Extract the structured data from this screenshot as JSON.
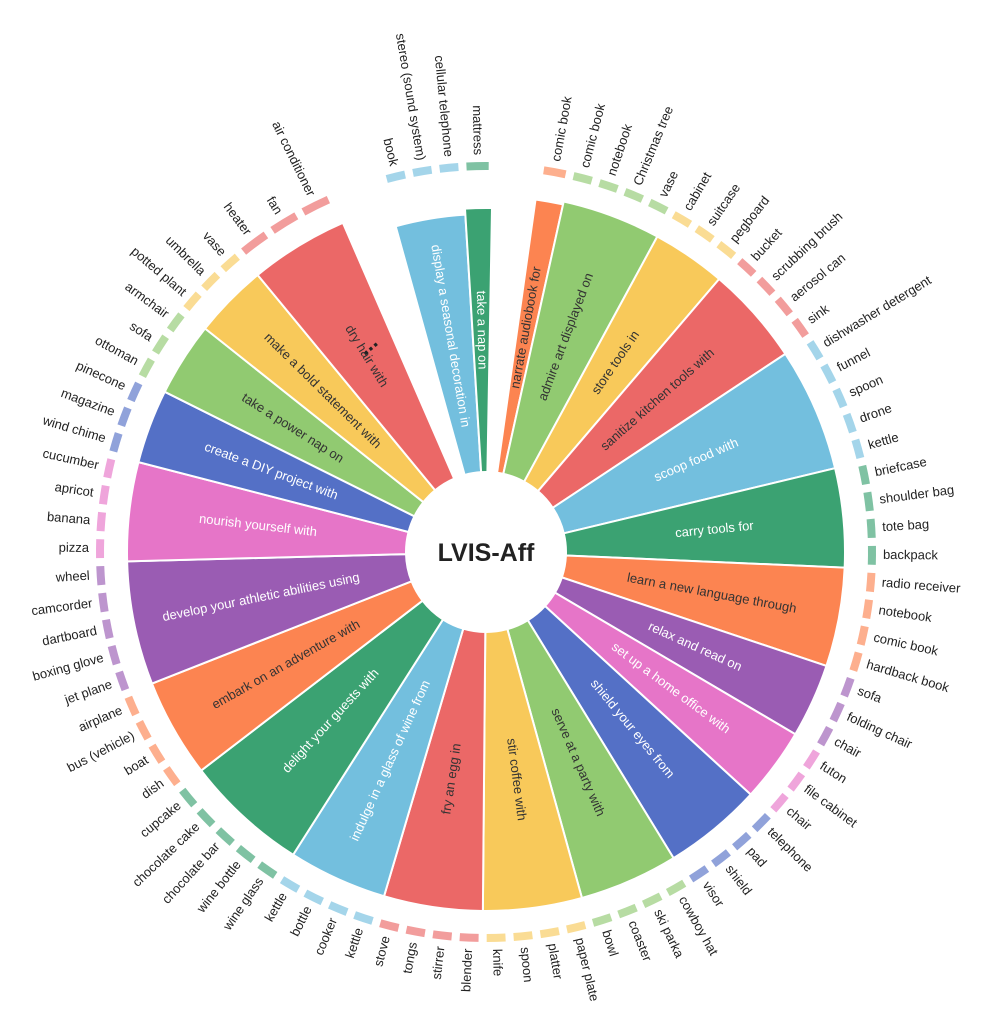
{
  "chart_data": {
    "type": "radial-bar",
    "title": "LVIS-Aff",
    "ellipsis": "...",
    "colors": {
      "red": "#EB6867",
      "yellow": "#F8C95A",
      "green": "#91CA71",
      "blue": "#5470C6",
      "pink": "#E675C8",
      "purple": "#9A5CB3",
      "orange": "#FC8451",
      "teal": "#3BA272",
      "sky": "#73BFDE"
    },
    "segments": [
      {
        "label": "narrate audiobook for",
        "color": "orange",
        "angle": 4.5,
        "r": 0.92,
        "objects": [
          "comic book"
        ]
      },
      {
        "label": "admire art displayed on",
        "color": "green",
        "angle": 16,
        "r": 0.93,
        "objects": [
          "comic book",
          "notebook",
          "Christmas tree",
          "vase"
        ]
      },
      {
        "label": "store tools in",
        "color": "yellow",
        "angle": 12,
        "r": 0.93,
        "objects": [
          "cabinet",
          "suitcase",
          "pegboard"
        ]
      },
      {
        "label": "sanitize kitchen tools with",
        "color": "red",
        "angle": 16,
        "r": 0.93,
        "objects": [
          "bucket",
          "scrubbing brush",
          "aerosol can",
          "sink"
        ]
      },
      {
        "label": "scoop food with",
        "color": "sky",
        "angle": 20,
        "r": 0.93,
        "objects": [
          "dishwasher detergent",
          "funnel",
          "spoon",
          "drone",
          "kettle"
        ]
      },
      {
        "label": "carry tools for",
        "color": "teal",
        "angle": 16,
        "r": 0.93,
        "objects": [
          "briefcase",
          "shoulder bag",
          "tote bag",
          "backpack"
        ]
      },
      {
        "label": "learn a new language through",
        "color": "orange",
        "angle": 16,
        "r": 0.93,
        "objects": [
          "radio receiver",
          "notebook",
          "comic book",
          "hardback book"
        ]
      },
      {
        "label": "relax and read on",
        "color": "purple",
        "angle": 12,
        "r": 0.93,
        "objects": [
          "sofa",
          "folding chair",
          "chair"
        ]
      },
      {
        "label": "set up a home office with",
        "color": "pink",
        "angle": 12,
        "r": 0.93,
        "objects": [
          "futon",
          "file cabinet",
          "chair"
        ]
      },
      {
        "label": "shield your eyes from",
        "color": "blue",
        "angle": 16,
        "r": 0.93,
        "objects": [
          "telephone",
          "pad",
          "shield",
          "visor"
        ]
      },
      {
        "label": "serve at a party with",
        "color": "green",
        "angle": 16,
        "r": 0.93,
        "objects": [
          "cowboy hat",
          "ski parka",
          "coaster",
          "bowl"
        ]
      },
      {
        "label": "stir coffee with",
        "color": "yellow",
        "angle": 16,
        "r": 0.93,
        "objects": [
          "paper plate",
          "platter",
          "spoon",
          "knife"
        ]
      },
      {
        "label": "fry an egg in",
        "color": "red",
        "angle": 16,
        "r": 0.93,
        "objects": [
          "blender",
          "stirrer",
          "tongs",
          "stove"
        ]
      },
      {
        "label": "indulge in a glass of wine from",
        "color": "sky",
        "angle": 16,
        "r": 0.93,
        "objects": [
          "kettle",
          "cooker",
          "bottle",
          "kettle"
        ]
      },
      {
        "label": "delight your guests with",
        "color": "teal",
        "angle": 20,
        "r": 0.93,
        "objects": [
          "wine glass",
          "wine bottle",
          "chocolate bar",
          "chocolate cake",
          "cupcake"
        ]
      },
      {
        "label": "embark on an adventure with",
        "color": "orange",
        "angle": 16,
        "r": 0.93,
        "objects": [
          "dish",
          "boat",
          "bus (vehicle)",
          "airplane"
        ]
      },
      {
        "label": "develop your athletic abilities using",
        "color": "purple",
        "angle": 20,
        "r": 0.93,
        "objects": [
          "jet plane",
          "boxing glove",
          "dartboard",
          "camcorder",
          "wheel"
        ]
      },
      {
        "label": "nourish yourself with",
        "color": "pink",
        "angle": 16,
        "r": 0.93,
        "objects": [
          "pizza",
          "banana",
          "apricot",
          "cucumber"
        ]
      },
      {
        "label": "create a DIY project with",
        "color": "blue",
        "angle": 12,
        "r": 0.93,
        "objects": [
          "wind chime",
          "magazine",
          "pinecone"
        ]
      },
      {
        "label": "take a power nap on",
        "color": "green",
        "angle": 12,
        "r": 0.93,
        "objects": [
          "ottoman",
          "sofa",
          "armchair"
        ]
      },
      {
        "label": "make a bold statement with",
        "color": "yellow",
        "angle": 12,
        "r": 0.93,
        "objects": [
          "potted plant",
          "umbrella",
          "vase"
        ]
      },
      {
        "label": "dry hair with",
        "color": "red",
        "angle": 16,
        "r": 0.93,
        "objects": [
          "heater",
          "fan",
          "air conditioner"
        ]
      },
      {
        "label": "",
        "color": "none",
        "angle": 8,
        "r": 0.0,
        "objects": []
      },
      {
        "label": "display a seasonal decoration in",
        "color": "sky",
        "angle": 12,
        "r": 0.86,
        "objects": [
          "book",
          "stereo (sound system)",
          "cellular telephone"
        ]
      },
      {
        "label": "take a nap on",
        "color": "teal",
        "angle": 4.5,
        "r": 0.88,
        "objects": [
          "mattress"
        ]
      }
    ]
  }
}
